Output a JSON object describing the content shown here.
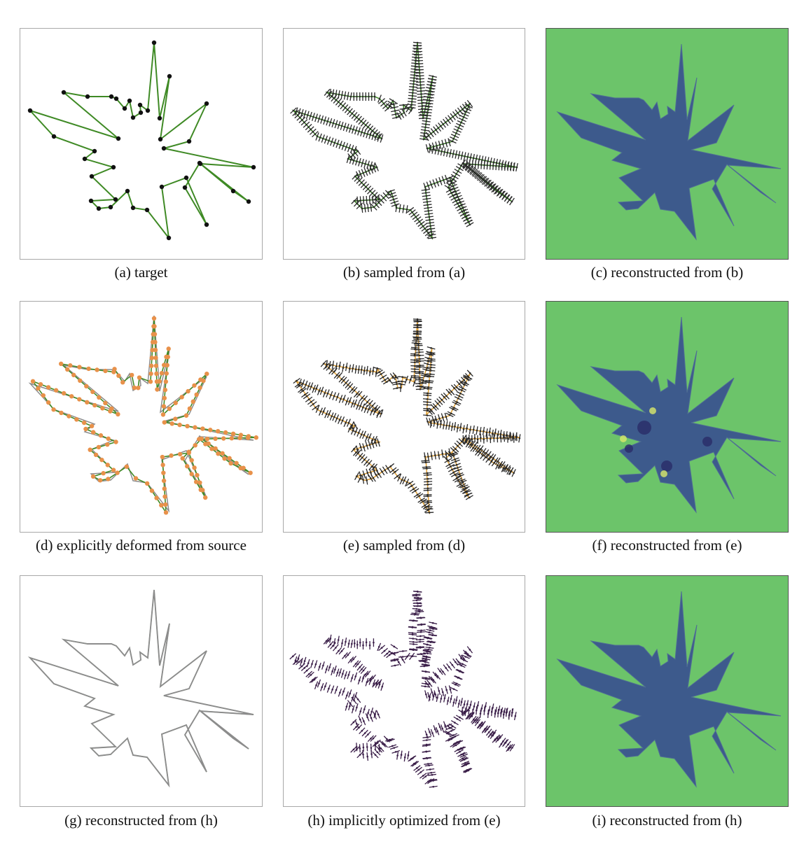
{
  "figure": {
    "panels": [
      {
        "id": "a",
        "caption": "(a) target"
      },
      {
        "id": "b",
        "caption": "(b) sampled from (a)"
      },
      {
        "id": "c",
        "caption": "(c) reconstructed from (b)"
      },
      {
        "id": "d",
        "caption": "(d) explicitly deformed from source"
      },
      {
        "id": "e",
        "caption": "(e) sampled from (d)"
      },
      {
        "id": "f",
        "caption": "(f) reconstructed from (e)"
      },
      {
        "id": "g",
        "caption": "(g) reconstructed from (h)"
      },
      {
        "id": "h",
        "caption": "(h) implicitly optimized from (e)"
      },
      {
        "id": "i",
        "caption": "(i) reconstructed from (h)"
      }
    ],
    "colors": {
      "outline_green": "#3f8a25",
      "outline_gray": "#8c8c8c",
      "vertex_black": "#111111",
      "vertex_orange": "#e8914a",
      "normal_dark": "#2a2a2a",
      "normal_purple": "#3b1f49",
      "sdf_outside": "#6cc46a",
      "sdf_inside": "#3d5a8c",
      "sdf_border_highlight": "#d9e86a"
    }
  }
}
